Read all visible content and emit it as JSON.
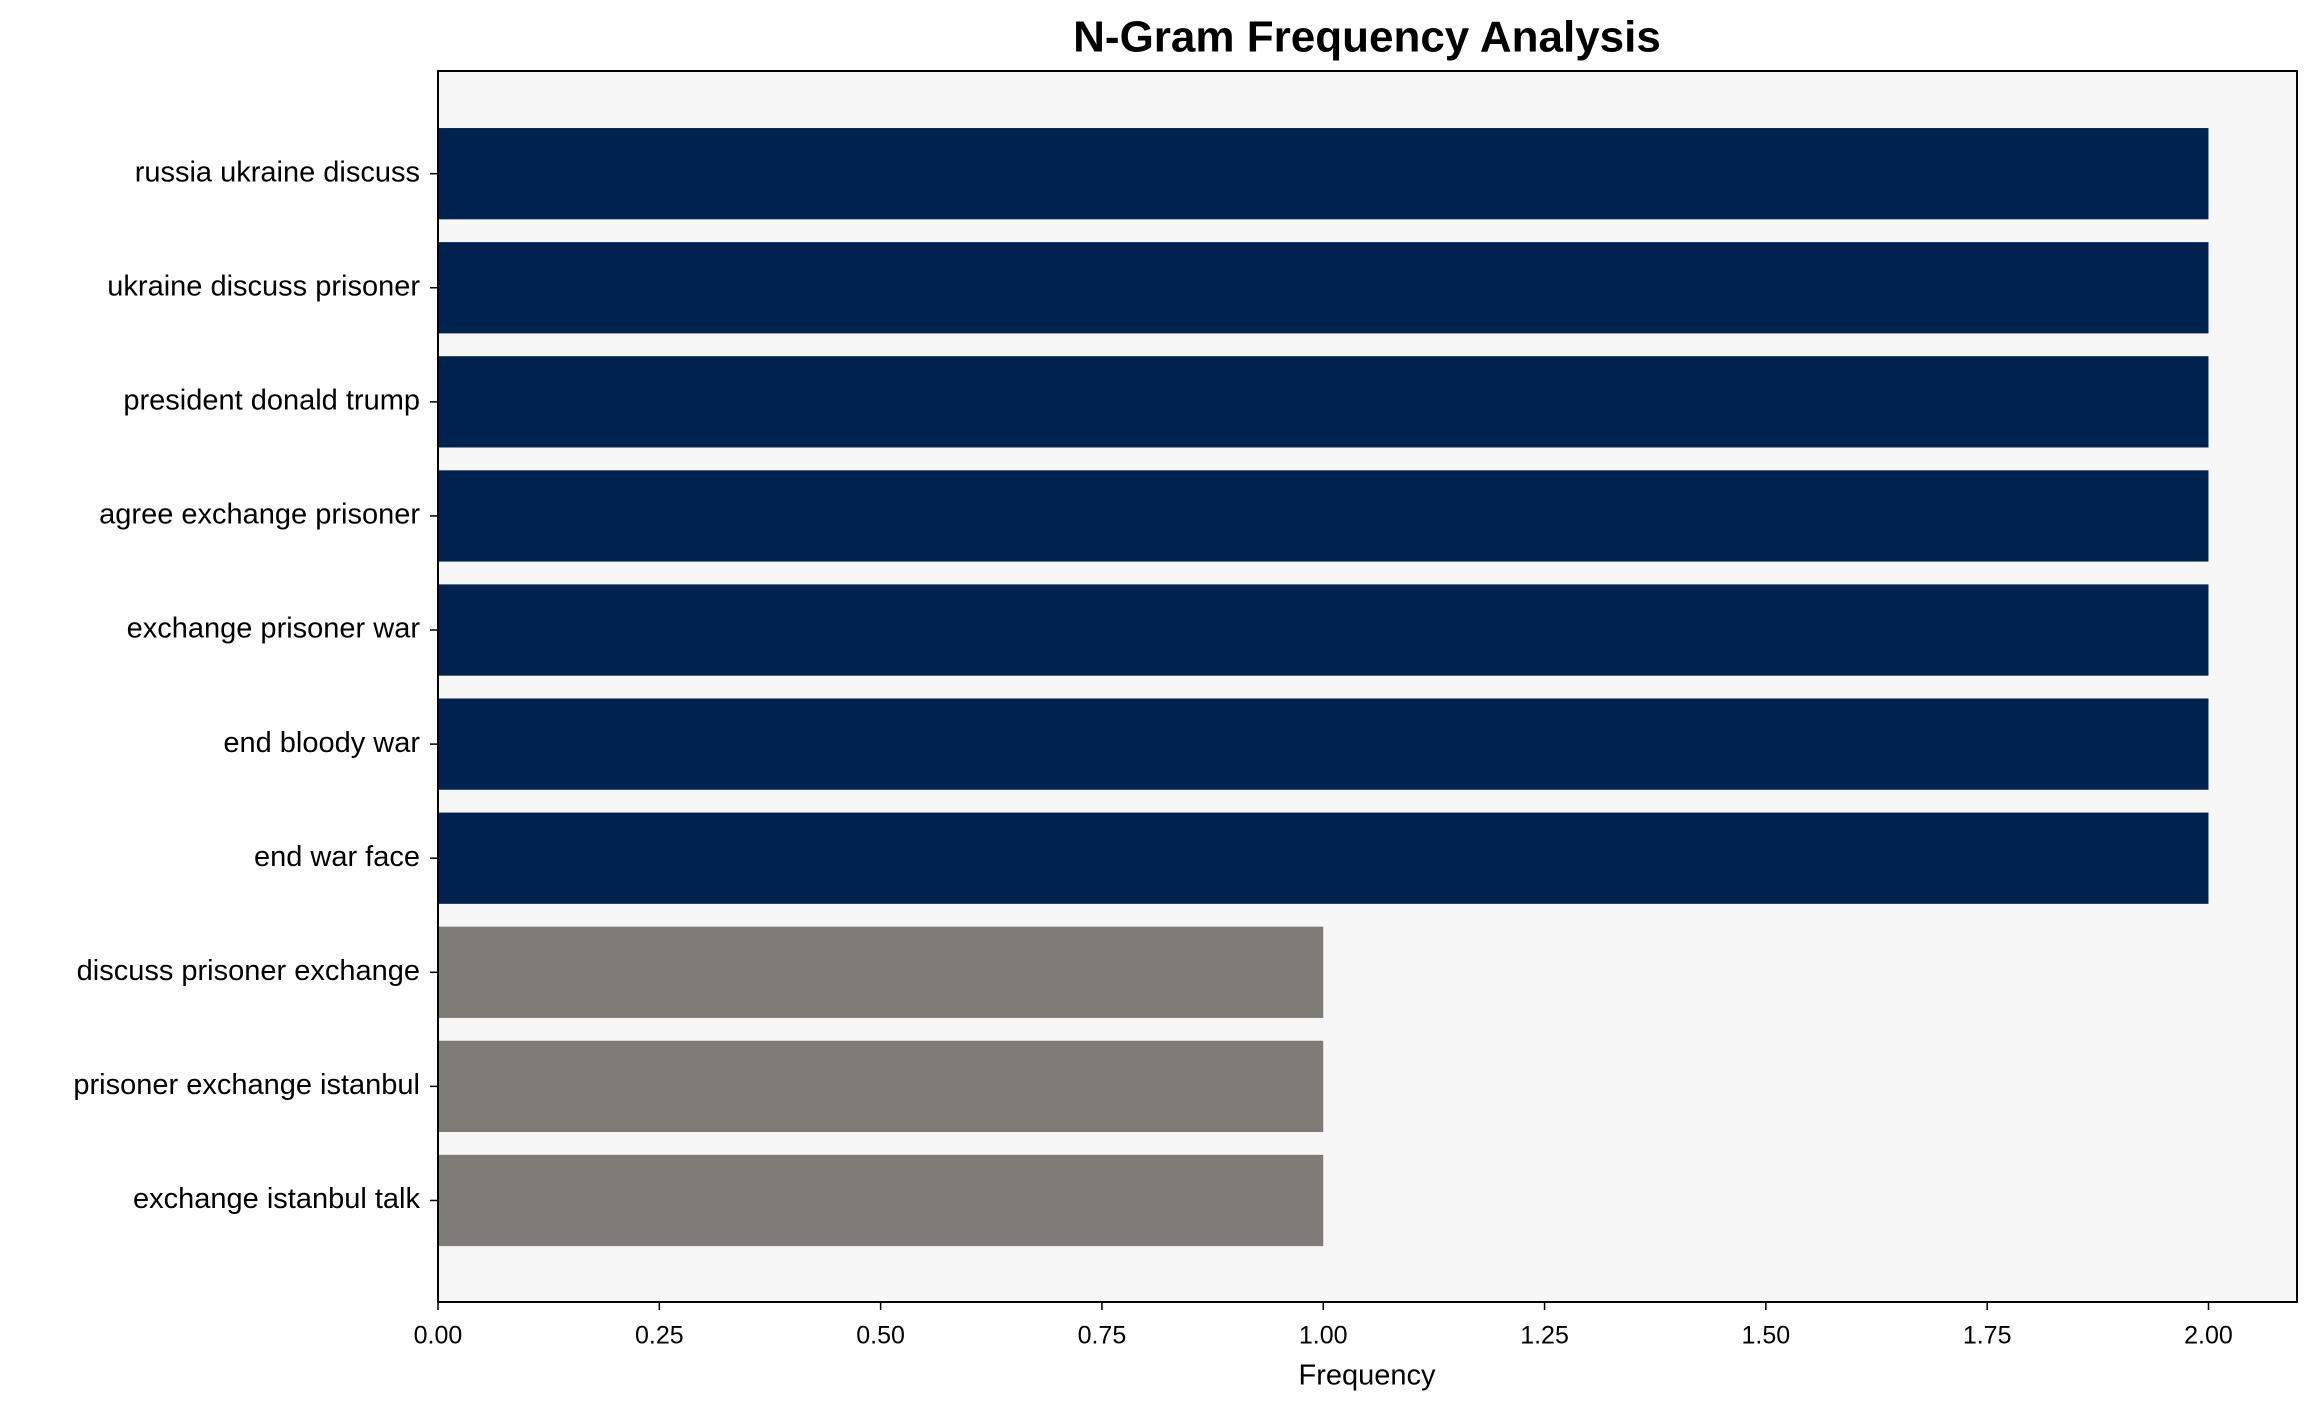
{
  "chart_data": {
    "type": "barh",
    "title": "N-Gram Frequency Analysis",
    "xlabel": "Frequency",
    "categories": [
      "russia ukraine discuss",
      "ukraine discuss prisoner",
      "president donald trump",
      "agree exchange prisoner",
      "exchange prisoner war",
      "end bloody war",
      "end war face",
      "discuss prisoner exchange",
      "prisoner exchange istanbul",
      "exchange istanbul talk"
    ],
    "values": [
      2,
      2,
      2,
      2,
      2,
      2,
      2,
      1,
      1,
      1
    ],
    "colors": [
      "#00224e",
      "#00224e",
      "#00224e",
      "#00224e",
      "#00224e",
      "#00224e",
      "#00224e",
      "#7e7c77",
      "#7e7c77",
      "#7e7c77"
    ],
    "xlim": [
      0,
      2.1
    ],
    "xticks": [
      {
        "value": 0,
        "label": "0.00"
      },
      {
        "value": 0.25,
        "label": "0.25"
      },
      {
        "value": 0.5,
        "label": "0.50"
      },
      {
        "value": 0.75,
        "label": "0.75"
      },
      {
        "value": 1,
        "label": "1.00"
      },
      {
        "value": 1.25,
        "label": "1.25"
      },
      {
        "value": 1.5,
        "label": "1.50"
      },
      {
        "value": 1.75,
        "label": "1.75"
      },
      {
        "value": 2,
        "label": "2.00"
      }
    ],
    "grid": false,
    "background": "#f7f7f7"
  }
}
